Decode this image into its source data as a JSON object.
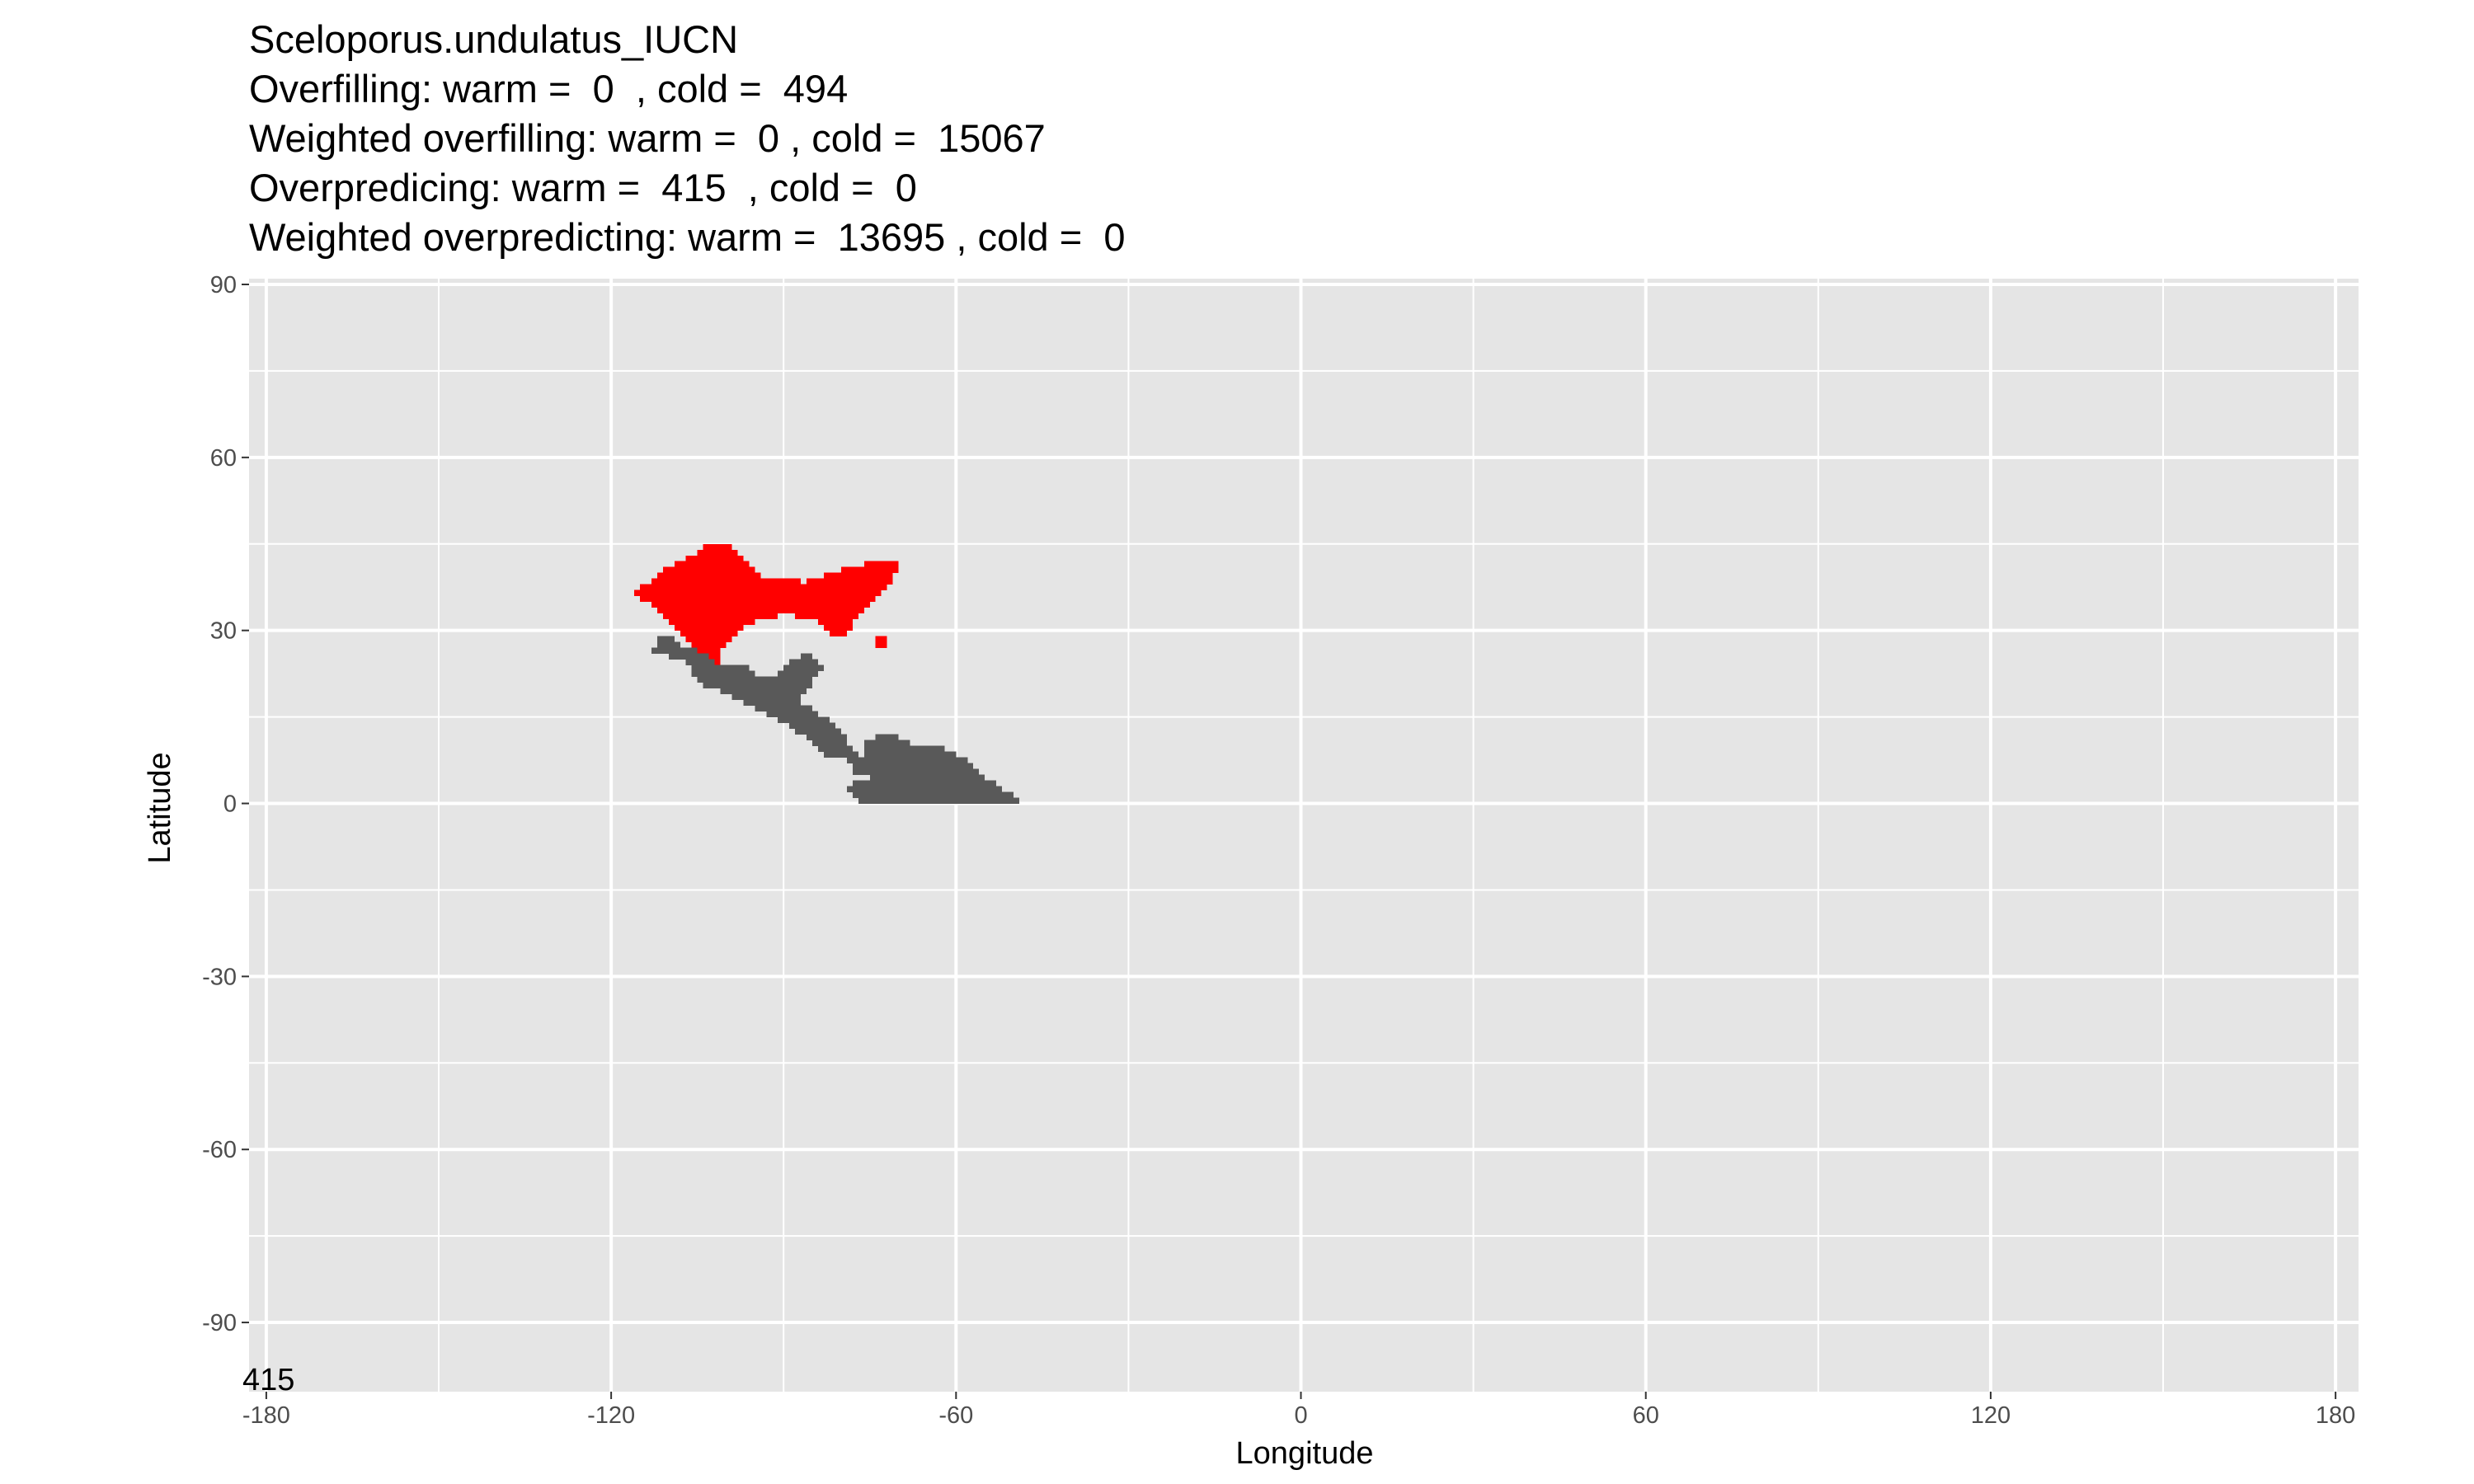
{
  "title_lines": [
    "Sceloporus.undulatus_IUCN",
    "Overfilling: warm =  0  , cold =  494",
    "Weighted overfilling: warm =  0 , cold =  15067",
    "Overpredicing: warm =  415  , cold =  0",
    "Weighted overpredicting: warm =  13695 , cold =  0"
  ],
  "annotation": "415",
  "chart_data": {
    "type": "heatmap",
    "xlabel": "Longitude",
    "ylabel": "Latitude",
    "xlim": [
      -183,
      184
    ],
    "ylim": [
      -102,
      91
    ],
    "xticks": [
      -180,
      -120,
      -60,
      0,
      60,
      120,
      180
    ],
    "yticks": [
      -90,
      -60,
      -30,
      0,
      30,
      60,
      90
    ],
    "grid": true,
    "panel_color": "#e5e5e5",
    "colors": {
      "overpredicted_warm": "#ff0000",
      "range": "#595959"
    },
    "regions": [
      {
        "category": "overpredicted_warm",
        "rows": [
          [
            44,
            -104,
            -100
          ],
          [
            43,
            -105,
            -99
          ],
          [
            42,
            -107,
            -98
          ],
          [
            41,
            -109,
            -97,
            -76,
            -71
          ],
          [
            40,
            -111,
            -96,
            -80,
            -71
          ],
          [
            39,
            -112,
            -95,
            -83,
            -72
          ],
          [
            38,
            -113,
            -88,
            -86,
            -72
          ],
          [
            37,
            -115,
            -73
          ],
          [
            36,
            -116,
            -74
          ],
          [
            35,
            -115,
            -75
          ],
          [
            34,
            -113,
            -76
          ],
          [
            33,
            -112,
            -77
          ],
          [
            32,
            -111,
            -92,
            -88,
            -78
          ],
          [
            31,
            -110,
            -96,
            -84,
            -79
          ],
          [
            30,
            -109,
            -98,
            -83,
            -79
          ],
          [
            29,
            -108,
            -99,
            -82,
            -80
          ],
          [
            28,
            -107,
            -100,
            -74,
            -73
          ],
          [
            27,
            -106,
            -101,
            -74,
            -73
          ],
          [
            26,
            -105,
            -102
          ],
          [
            25,
            -104,
            -102
          ],
          [
            24,
            -104,
            -102
          ],
          [
            23,
            -103,
            -102
          ]
        ]
      },
      {
        "category": "range",
        "rows": [
          [
            28,
            -112,
            -110
          ],
          [
            27,
            -112,
            -109
          ],
          [
            26,
            -113,
            -106
          ],
          [
            25,
            -110,
            -104,
            -87,
            -86
          ],
          [
            24,
            -107,
            -103,
            -89,
            -85
          ],
          [
            23,
            -106,
            -97,
            -90,
            -84
          ],
          [
            22,
            -106,
            -96,
            -91,
            -85
          ],
          [
            21,
            -105,
            -86
          ],
          [
            20,
            -104,
            -86
          ],
          [
            19,
            -101,
            -87
          ],
          [
            18,
            -99,
            -88
          ],
          [
            17,
            -97,
            -88
          ],
          [
            16,
            -95,
            -86
          ],
          [
            15,
            -93,
            -85
          ],
          [
            14,
            -91,
            -83
          ],
          [
            13,
            -89,
            -82
          ],
          [
            12,
            -88,
            -81
          ],
          [
            11,
            -86,
            -80,
            -74,
            -71
          ],
          [
            10,
            -85,
            -80,
            -76,
            -69
          ],
          [
            9,
            -84,
            -79,
            -76,
            -68,
            -67,
            -63
          ],
          [
            8,
            -83,
            -78,
            -76,
            -61
          ],
          [
            7,
            -79,
            -59
          ],
          [
            6,
            -78,
            -58
          ],
          [
            5,
            -78,
            -57
          ],
          [
            4,
            -75,
            -56
          ],
          [
            3,
            -78,
            -54
          ],
          [
            2,
            -79,
            -53
          ],
          [
            1,
            -78,
            -51
          ],
          [
            0,
            -77,
            -50
          ]
        ]
      }
    ]
  }
}
